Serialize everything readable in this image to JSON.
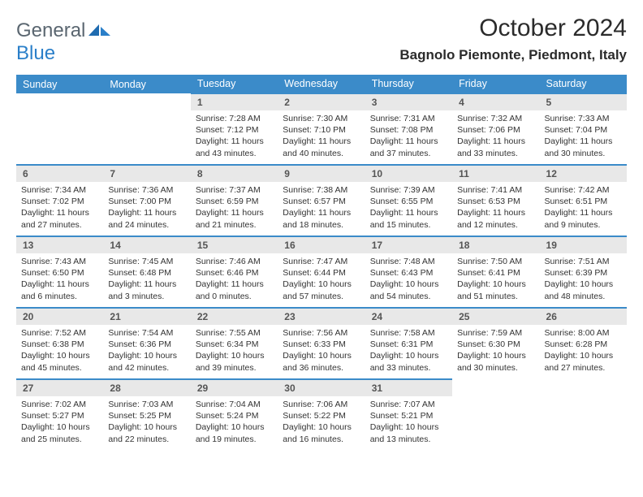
{
  "logo": {
    "text1": "General",
    "text2": "Blue"
  },
  "title": "October 2024",
  "location": "Bagnolo Piemonte, Piedmont, Italy",
  "colors": {
    "header_bg": "#3b8bc9",
    "header_fg": "#ffffff",
    "daynum_bg": "#e8e8e8",
    "border": "#3b8bc9",
    "logo_gray": "#5a6670",
    "logo_blue": "#2a7fc9"
  },
  "day_headers": [
    "Sunday",
    "Monday",
    "Tuesday",
    "Wednesday",
    "Thursday",
    "Friday",
    "Saturday"
  ],
  "weeks": [
    [
      null,
      null,
      {
        "n": "1",
        "sr": "7:28 AM",
        "ss": "7:12 PM",
        "dl": "11 hours and 43 minutes."
      },
      {
        "n": "2",
        "sr": "7:30 AM",
        "ss": "7:10 PM",
        "dl": "11 hours and 40 minutes."
      },
      {
        "n": "3",
        "sr": "7:31 AM",
        "ss": "7:08 PM",
        "dl": "11 hours and 37 minutes."
      },
      {
        "n": "4",
        "sr": "7:32 AM",
        "ss": "7:06 PM",
        "dl": "11 hours and 33 minutes."
      },
      {
        "n": "5",
        "sr": "7:33 AM",
        "ss": "7:04 PM",
        "dl": "11 hours and 30 minutes."
      }
    ],
    [
      {
        "n": "6",
        "sr": "7:34 AM",
        "ss": "7:02 PM",
        "dl": "11 hours and 27 minutes."
      },
      {
        "n": "7",
        "sr": "7:36 AM",
        "ss": "7:00 PM",
        "dl": "11 hours and 24 minutes."
      },
      {
        "n": "8",
        "sr": "7:37 AM",
        "ss": "6:59 PM",
        "dl": "11 hours and 21 minutes."
      },
      {
        "n": "9",
        "sr": "7:38 AM",
        "ss": "6:57 PM",
        "dl": "11 hours and 18 minutes."
      },
      {
        "n": "10",
        "sr": "7:39 AM",
        "ss": "6:55 PM",
        "dl": "11 hours and 15 minutes."
      },
      {
        "n": "11",
        "sr": "7:41 AM",
        "ss": "6:53 PM",
        "dl": "11 hours and 12 minutes."
      },
      {
        "n": "12",
        "sr": "7:42 AM",
        "ss": "6:51 PM",
        "dl": "11 hours and 9 minutes."
      }
    ],
    [
      {
        "n": "13",
        "sr": "7:43 AM",
        "ss": "6:50 PM",
        "dl": "11 hours and 6 minutes."
      },
      {
        "n": "14",
        "sr": "7:45 AM",
        "ss": "6:48 PM",
        "dl": "11 hours and 3 minutes."
      },
      {
        "n": "15",
        "sr": "7:46 AM",
        "ss": "6:46 PM",
        "dl": "11 hours and 0 minutes."
      },
      {
        "n": "16",
        "sr": "7:47 AM",
        "ss": "6:44 PM",
        "dl": "10 hours and 57 minutes."
      },
      {
        "n": "17",
        "sr": "7:48 AM",
        "ss": "6:43 PM",
        "dl": "10 hours and 54 minutes."
      },
      {
        "n": "18",
        "sr": "7:50 AM",
        "ss": "6:41 PM",
        "dl": "10 hours and 51 minutes."
      },
      {
        "n": "19",
        "sr": "7:51 AM",
        "ss": "6:39 PM",
        "dl": "10 hours and 48 minutes."
      }
    ],
    [
      {
        "n": "20",
        "sr": "7:52 AM",
        "ss": "6:38 PM",
        "dl": "10 hours and 45 minutes."
      },
      {
        "n": "21",
        "sr": "7:54 AM",
        "ss": "6:36 PM",
        "dl": "10 hours and 42 minutes."
      },
      {
        "n": "22",
        "sr": "7:55 AM",
        "ss": "6:34 PM",
        "dl": "10 hours and 39 minutes."
      },
      {
        "n": "23",
        "sr": "7:56 AM",
        "ss": "6:33 PM",
        "dl": "10 hours and 36 minutes."
      },
      {
        "n": "24",
        "sr": "7:58 AM",
        "ss": "6:31 PM",
        "dl": "10 hours and 33 minutes."
      },
      {
        "n": "25",
        "sr": "7:59 AM",
        "ss": "6:30 PM",
        "dl": "10 hours and 30 minutes."
      },
      {
        "n": "26",
        "sr": "8:00 AM",
        "ss": "6:28 PM",
        "dl": "10 hours and 27 minutes."
      }
    ],
    [
      {
        "n": "27",
        "sr": "7:02 AM",
        "ss": "5:27 PM",
        "dl": "10 hours and 25 minutes."
      },
      {
        "n": "28",
        "sr": "7:03 AM",
        "ss": "5:25 PM",
        "dl": "10 hours and 22 minutes."
      },
      {
        "n": "29",
        "sr": "7:04 AM",
        "ss": "5:24 PM",
        "dl": "10 hours and 19 minutes."
      },
      {
        "n": "30",
        "sr": "7:06 AM",
        "ss": "5:22 PM",
        "dl": "10 hours and 16 minutes."
      },
      {
        "n": "31",
        "sr": "7:07 AM",
        "ss": "5:21 PM",
        "dl": "10 hours and 13 minutes."
      },
      null,
      null
    ]
  ],
  "labels": {
    "sunrise": "Sunrise:",
    "sunset": "Sunset:",
    "daylight": "Daylight:"
  }
}
